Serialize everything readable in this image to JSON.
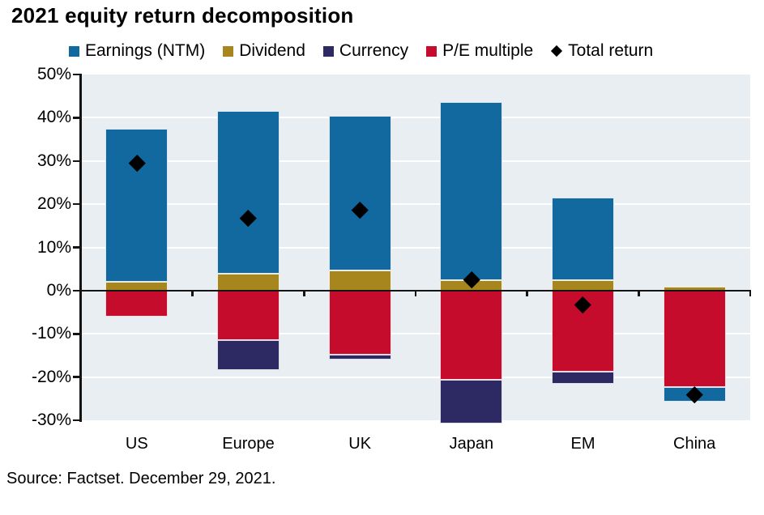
{
  "title": "2021 equity return decomposition",
  "source": "Source: Factset. December 29, 2021.",
  "colors": {
    "earnings": "#11699f",
    "dividend": "#a8861e",
    "currency": "#2d2a63",
    "pe": "#c60c2d",
    "total": "#000000",
    "plot_bg": "#e9eef2",
    "gridline": "#ffffff",
    "axis": "#141414",
    "text": "#000000"
  },
  "legend": [
    {
      "key": "earnings",
      "label": "Earnings (NTM)",
      "marker": "square"
    },
    {
      "key": "dividend",
      "label": "Dividend",
      "marker": "square"
    },
    {
      "key": "currency",
      "label": "Currency",
      "marker": "square"
    },
    {
      "key": "pe",
      "label": "P/E multiple",
      "marker": "square"
    },
    {
      "key": "total",
      "label": "Total return",
      "marker": "diamond"
    }
  ],
  "chart_data": {
    "type": "bar",
    "stacked": true,
    "title": "2021 equity return decomposition",
    "categories": [
      "US",
      "Europe",
      "UK",
      "Japan",
      "EM",
      "China"
    ],
    "series": [
      {
        "key": "earnings",
        "name": "Earnings (NTM)",
        "values": [
          35.5,
          37.6,
          35.8,
          41.2,
          19.1,
          -3.2
        ]
      },
      {
        "key": "dividend",
        "name": "Dividend",
        "values": [
          2.0,
          3.9,
          4.6,
          2.4,
          2.4,
          1.0
        ]
      },
      {
        "key": "currency",
        "name": "Currency",
        "values": [
          0,
          -7.0,
          -1.2,
          -10.2,
          -2.8,
          0
        ]
      },
      {
        "key": "pe",
        "name": "P/E multiple",
        "values": [
          -6.0,
          -11.4,
          -14.8,
          -20.6,
          -18.8,
          -22.4
        ]
      }
    ],
    "markers": {
      "key": "total",
      "name": "Total return",
      "values": [
        29.5,
        16.8,
        18.7,
        2.5,
        -3.2,
        -24.0
      ]
    },
    "ylim": [
      -30,
      50
    ],
    "ytick_step": 10,
    "ytick_labels": [
      "50%",
      "40%",
      "30%",
      "20%",
      "10%",
      "0%",
      "-10%",
      "-20%",
      "-30%"
    ],
    "xlabel": "",
    "ylabel": "",
    "grid": true,
    "legend_position": "top"
  }
}
